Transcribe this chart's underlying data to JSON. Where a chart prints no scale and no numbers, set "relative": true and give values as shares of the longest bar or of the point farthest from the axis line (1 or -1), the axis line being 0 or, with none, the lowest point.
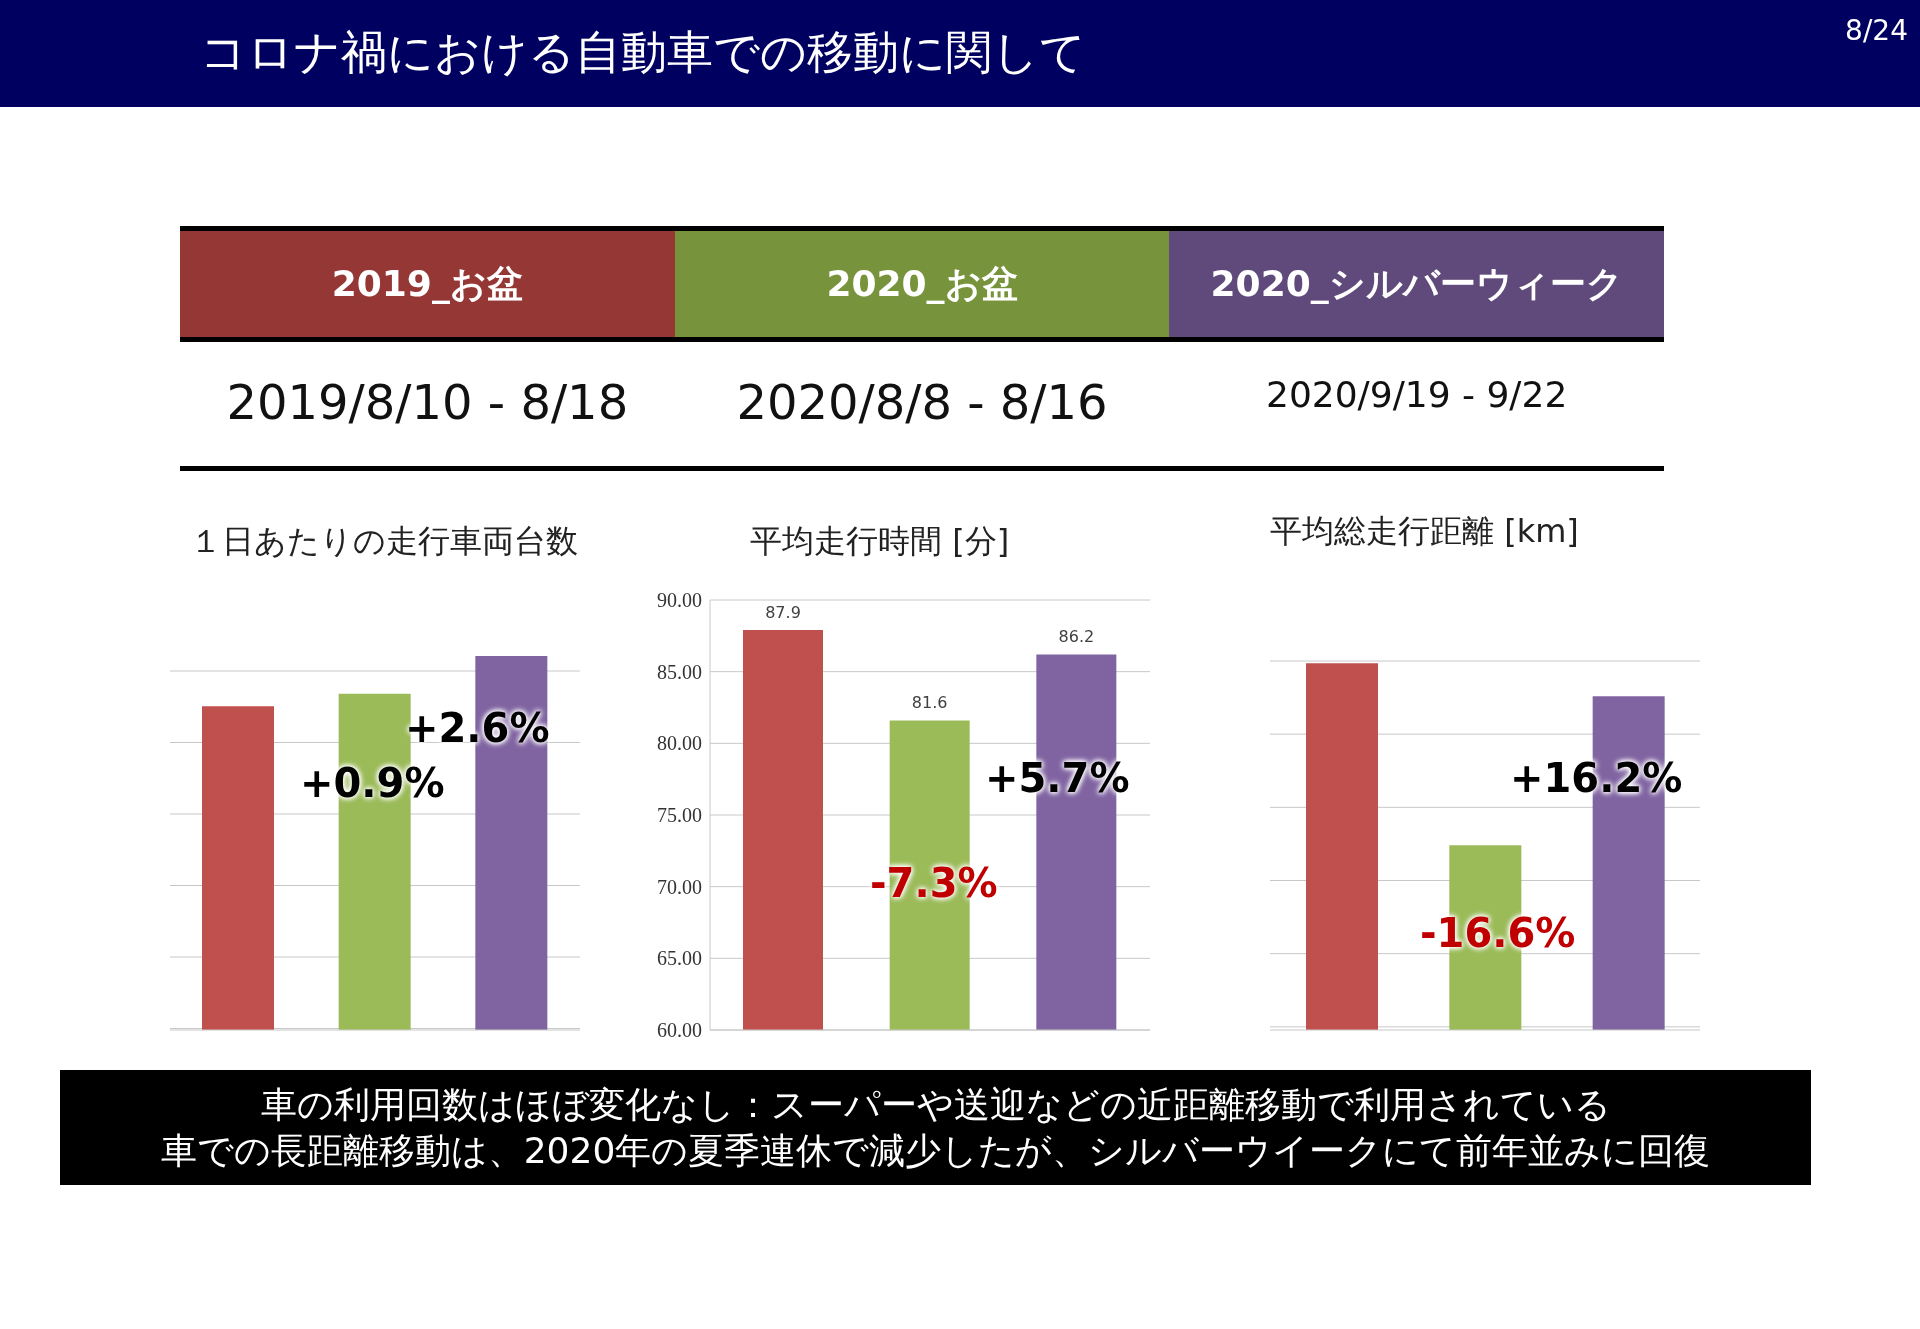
{
  "chart_data": [
    {
      "type": "other",
      "title": "コロナ禍における自動車での移動に関して",
      "annotations": [
        "8/24"
      ]
    },
    {
      "type": "other",
      "categories": [
        "2019_お盆",
        "2020_お盆",
        "2020_シルバーウィーク"
      ],
      "colors": [
        "#953735",
        "#77933c",
        "#604a7b"
      ],
      "annotations": [
        "2019/8/10 - 8/18",
        "2020/8/8 - 8/16",
        "2020/9/19 - 9/22"
      ]
    },
    {
      "type": "bar",
      "title": "１日あたりの走行車両台数",
      "categories": [
        null,
        null,
        null
      ],
      "values": [
        0.866,
        0.899,
        1
      ],
      "colors": [
        "#c0504d",
        "#9bbb59",
        "#8064a2"
      ],
      "relative": true,
      "grid": "y",
      "annotations": [
        "+0.9%",
        "+2.6%"
      ]
    },
    {
      "type": "bar",
      "title": "平均走行時間 [分]",
      "categories": [
        null,
        null,
        null
      ],
      "values": [
        87.9,
        81.6,
        86.2
      ],
      "colors": [
        "#c0504d",
        "#9bbb59",
        "#8064a2"
      ],
      "ylim": [
        60,
        90
      ],
      "yticks": [
        {
          "value": 60,
          "label": "60.00"
        },
        {
          "value": 65,
          "label": "65.00"
        },
        {
          "value": 70,
          "label": "70.00"
        },
        {
          "value": 75,
          "label": "75.00"
        },
        {
          "value": 80,
          "label": "80.00"
        },
        {
          "value": 85,
          "label": "85.00"
        },
        {
          "value": 90,
          "label": "90.00"
        }
      ],
      "grid": "y",
      "data_labels": true,
      "annotations": [
        "-7.3%",
        "+5.7%"
      ]
    },
    {
      "type": "bar",
      "title": "平均総走行距離 [km]",
      "categories": [
        null,
        null,
        null
      ],
      "values": [
        1,
        0.504,
        0.91
      ],
      "colors": [
        "#c0504d",
        "#9bbb59",
        "#8064a2"
      ],
      "relative": true,
      "grid": "y",
      "annotations": [
        "-16.6%",
        "+16.2%"
      ]
    },
    {
      "type": "other",
      "annotations": [
        "車の利用回数はほぼ変化なし：スーパーや送迎などの近距離移動で利用されている",
        "車での長距離移動は、2020年の夏季連休で減少したが、シルバーウイークにて前年並みに回復"
      ]
    }
  ]
}
